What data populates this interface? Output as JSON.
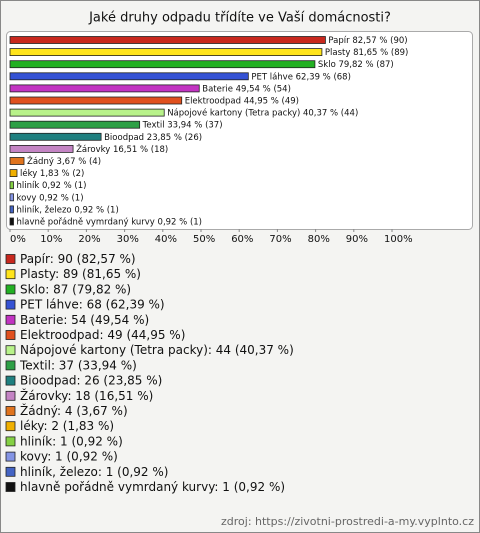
{
  "chart_data": {
    "type": "bar",
    "orientation": "horizontal",
    "title": "Jaké druhy odpadu třídíte ve Vaší domácnosti?",
    "categories": [
      "Papír",
      "Plasty",
      "Sklo",
      "PET láhve",
      "Baterie",
      "Elektroodpad",
      "Nápojové kartony (Tetra packy)",
      "Textil",
      "Bioodpad",
      "Žárovky",
      "Žádný",
      "léky",
      "hliník",
      "kovy",
      "hliník, železo",
      "hlavně pořádně vymrdaný kurvy"
    ],
    "values": [
      82.57,
      81.65,
      79.82,
      62.39,
      49.54,
      44.95,
      40.37,
      33.94,
      23.85,
      16.51,
      3.67,
      1.83,
      0.92,
      0.92,
      0.92,
      0.92
    ],
    "value_labels": [
      "Papír 82,57 % (90)",
      "Plasty 81,65 % (89)",
      "Sklo 79,82 % (87)",
      "PET láhve 62,39 % (68)",
      "Baterie 49,54 % (54)",
      "Elektroodpad 44,95 % (49)",
      "Nápojové kartony (Tetra packy) 40,37 % (44)",
      "Textil 33,94 % (37)",
      "Bioodpad 23,85 % (26)",
      "Žárovky 16,51 % (18)",
      "Žádný 3,67 % (4)",
      "léky 1,83 % (2)",
      "hliník 0,92 % (1)",
      "kovy 0,92 % (1)",
      "hliník, železo 0,92 % (1)",
      "hlavně pořádně vymrdaný kurvy 0,92 % (1)"
    ],
    "legend": [
      "Papír: 90 (82,57 %)",
      "Plasty: 89 (81,65 %)",
      "Sklo: 87 (79,82 %)",
      "PET láhve: 68 (62,39 %)",
      "Baterie: 54 (49,54 %)",
      "Elektroodpad: 49 (44,95 %)",
      "Nápojové kartony (Tetra packy): 44 (40,37 %)",
      "Textil: 37 (33,94 %)",
      "Bioodpad: 26 (23,85 %)",
      "Žárovky: 18 (16,51 %)",
      "Žádný: 4 (3,67 %)",
      "léky: 2 (1,83 %)",
      "hliník: 1 (0,92 %)",
      "kovy: 1 (0,92 %)",
      "hliník, železo: 1 (0,92 %)",
      "hlavně pořádně vymrdaný kurvy: 1 (0,92 %)"
    ],
    "colors": [
      "#c8281e",
      "#ffe41a",
      "#22b022",
      "#3552d4",
      "#c234c2",
      "#e0501e",
      "#b8f28a",
      "#2ea046",
      "#1f8080",
      "#c484c4",
      "#e0741e",
      "#f0b000",
      "#84d044",
      "#8494e4",
      "#4464c4",
      "#111111"
    ],
    "xlim": [
      0,
      100
    ],
    "xticks": [
      {
        "value": 0,
        "label": "0%"
      },
      {
        "value": 10,
        "label": "10%"
      },
      {
        "value": 20,
        "label": "20%"
      },
      {
        "value": 30,
        "label": "30%"
      },
      {
        "value": 40,
        "label": "40%"
      },
      {
        "value": 50,
        "label": "50%"
      },
      {
        "value": 60,
        "label": "60%"
      },
      {
        "value": 70,
        "label": "70%"
      },
      {
        "value": 80,
        "label": "80%"
      },
      {
        "value": 90,
        "label": "90%"
      },
      {
        "value": 100,
        "label": "100%"
      }
    ],
    "source": "zdroj: https://zivotni-prostredi-a-my.vyplnto.cz"
  }
}
